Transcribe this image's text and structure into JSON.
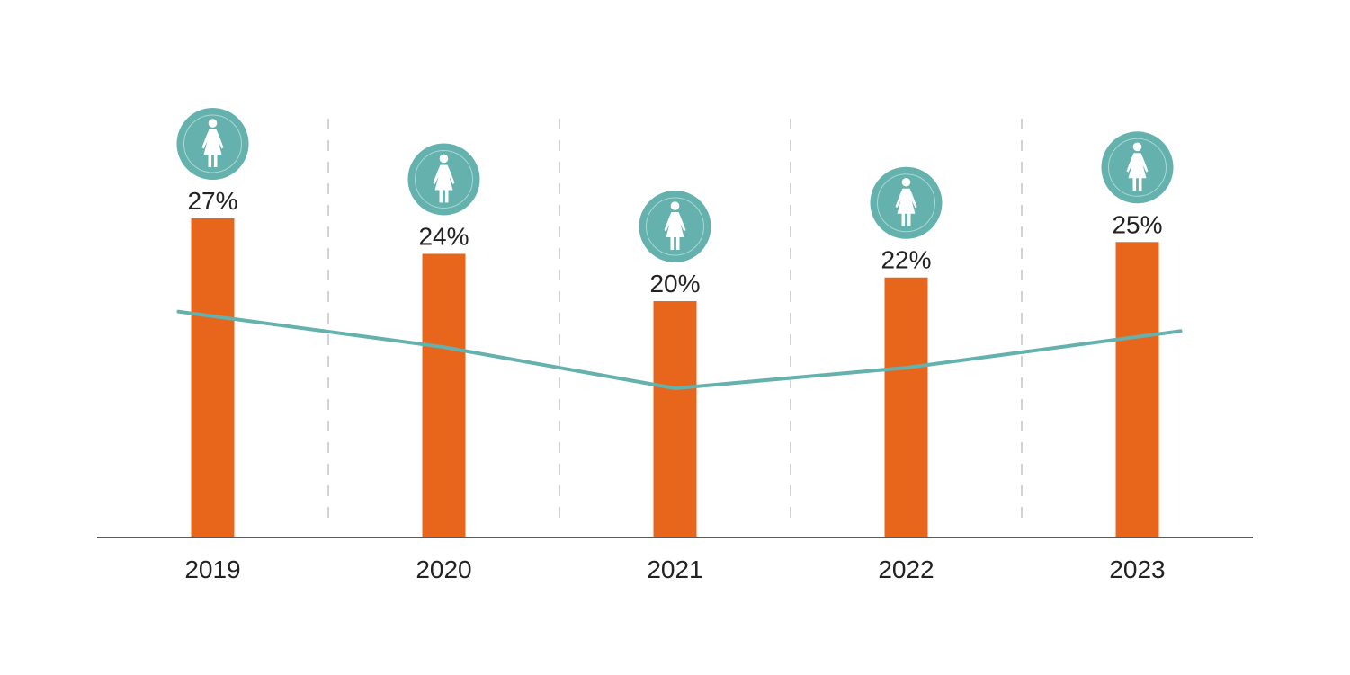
{
  "chart_data": {
    "type": "bar",
    "categories": [
      "2019",
      "2020",
      "2021",
      "2022",
      "2023"
    ],
    "values": [
      27,
      24,
      20,
      22,
      25
    ],
    "value_labels": [
      "27%",
      "24%",
      "20%",
      "22%",
      "25%"
    ],
    "unit": "%",
    "trend_line": true,
    "icon": "female-person-icon",
    "grid": "vertical-dashed-separators",
    "legend": "none",
    "title": "",
    "xlabel": "",
    "ylabel": ""
  },
  "colors": {
    "bar": "#E8661C",
    "trend": "#64B1AD",
    "icon_circle": "#64B1AD",
    "icon_ring": "#A9D8D4",
    "icon_glyph": "#FFFFFF",
    "separator": "#C8C8C8",
    "axis": "#222222",
    "text": "#222222"
  }
}
